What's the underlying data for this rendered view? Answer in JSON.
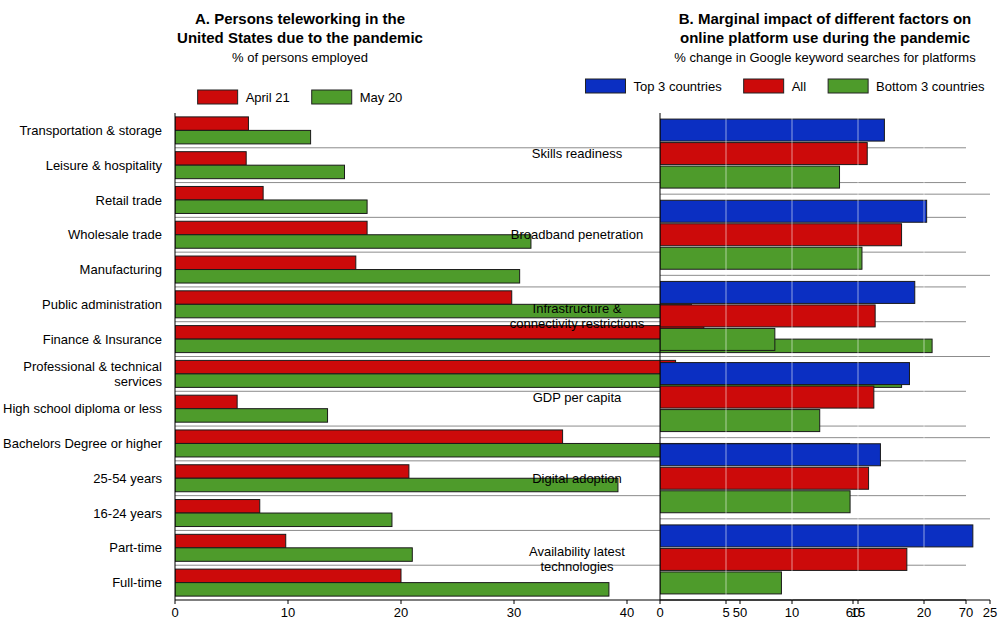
{
  "chart_data": [
    {
      "type": "bar",
      "orientation": "horizontal",
      "title": "A. Persons teleworking in the United States due to the pandemic",
      "subtitle": "% of persons employed",
      "categories": [
        "Transportation & storage",
        "Leisure & hospitality",
        "Retail trade",
        "Wholesale trade",
        "Manufacturing",
        "Public administration",
        "Finance & Insurance",
        "Professional & technical services",
        "High school diploma or less",
        "Bachelors Degree or higher",
        "25-54 years",
        "16-24 years",
        "Part-time",
        "Full-time"
      ],
      "series": [
        {
          "name": "April 21",
          "color": "#cc0a0a",
          "values": [
            6.5,
            6.3,
            7.8,
            17,
            16,
            29.8,
            46.8,
            44.3,
            5.5,
            34.3,
            20.7,
            7.5,
            9.8,
            20
          ]
        },
        {
          "name": "May 20",
          "color": "#4e9b2b",
          "values": [
            12,
            15,
            17,
            31.5,
            30.5,
            45.7,
            67,
            64.3,
            13.5,
            59.7,
            39.2,
            19.2,
            21,
            38.4
          ]
        }
      ],
      "xlim": [
        0,
        70
      ],
      "xticks": [
        0,
        10,
        20,
        30,
        40,
        50,
        60,
        70
      ],
      "grid": false,
      "legend": "top"
    },
    {
      "type": "bar",
      "orientation": "horizontal",
      "title": "B. Marginal impact of different factors on online platform use during the pandemic",
      "subtitle": "% change in Google keyword searches for platforms",
      "categories": [
        "Skills readiness",
        "Broadband penetration",
        "Infrastructure & connectivity restrictions",
        "GDP per capita",
        "Digital adoption",
        "Availability latest technologies"
      ],
      "series": [
        {
          "name": "Top 3 countries",
          "color": "#0b2fc2",
          "values": [
            17,
            20.2,
            19.3,
            18.9,
            16.7,
            23.7
          ]
        },
        {
          "name": "All",
          "color": "#cc0a0a",
          "values": [
            15.7,
            18.3,
            16.3,
            16.2,
            15.8,
            18.7
          ]
        },
        {
          "name": "Bottom 3 countries",
          "color": "#4e9b2b",
          "values": [
            13.6,
            15.3,
            8.7,
            12.1,
            14.4,
            9.2
          ]
        }
      ],
      "xlim": [
        0,
        25
      ],
      "xticks": [
        0,
        5,
        10,
        15,
        20,
        25
      ],
      "grid": true,
      "legend": "top"
    }
  ]
}
